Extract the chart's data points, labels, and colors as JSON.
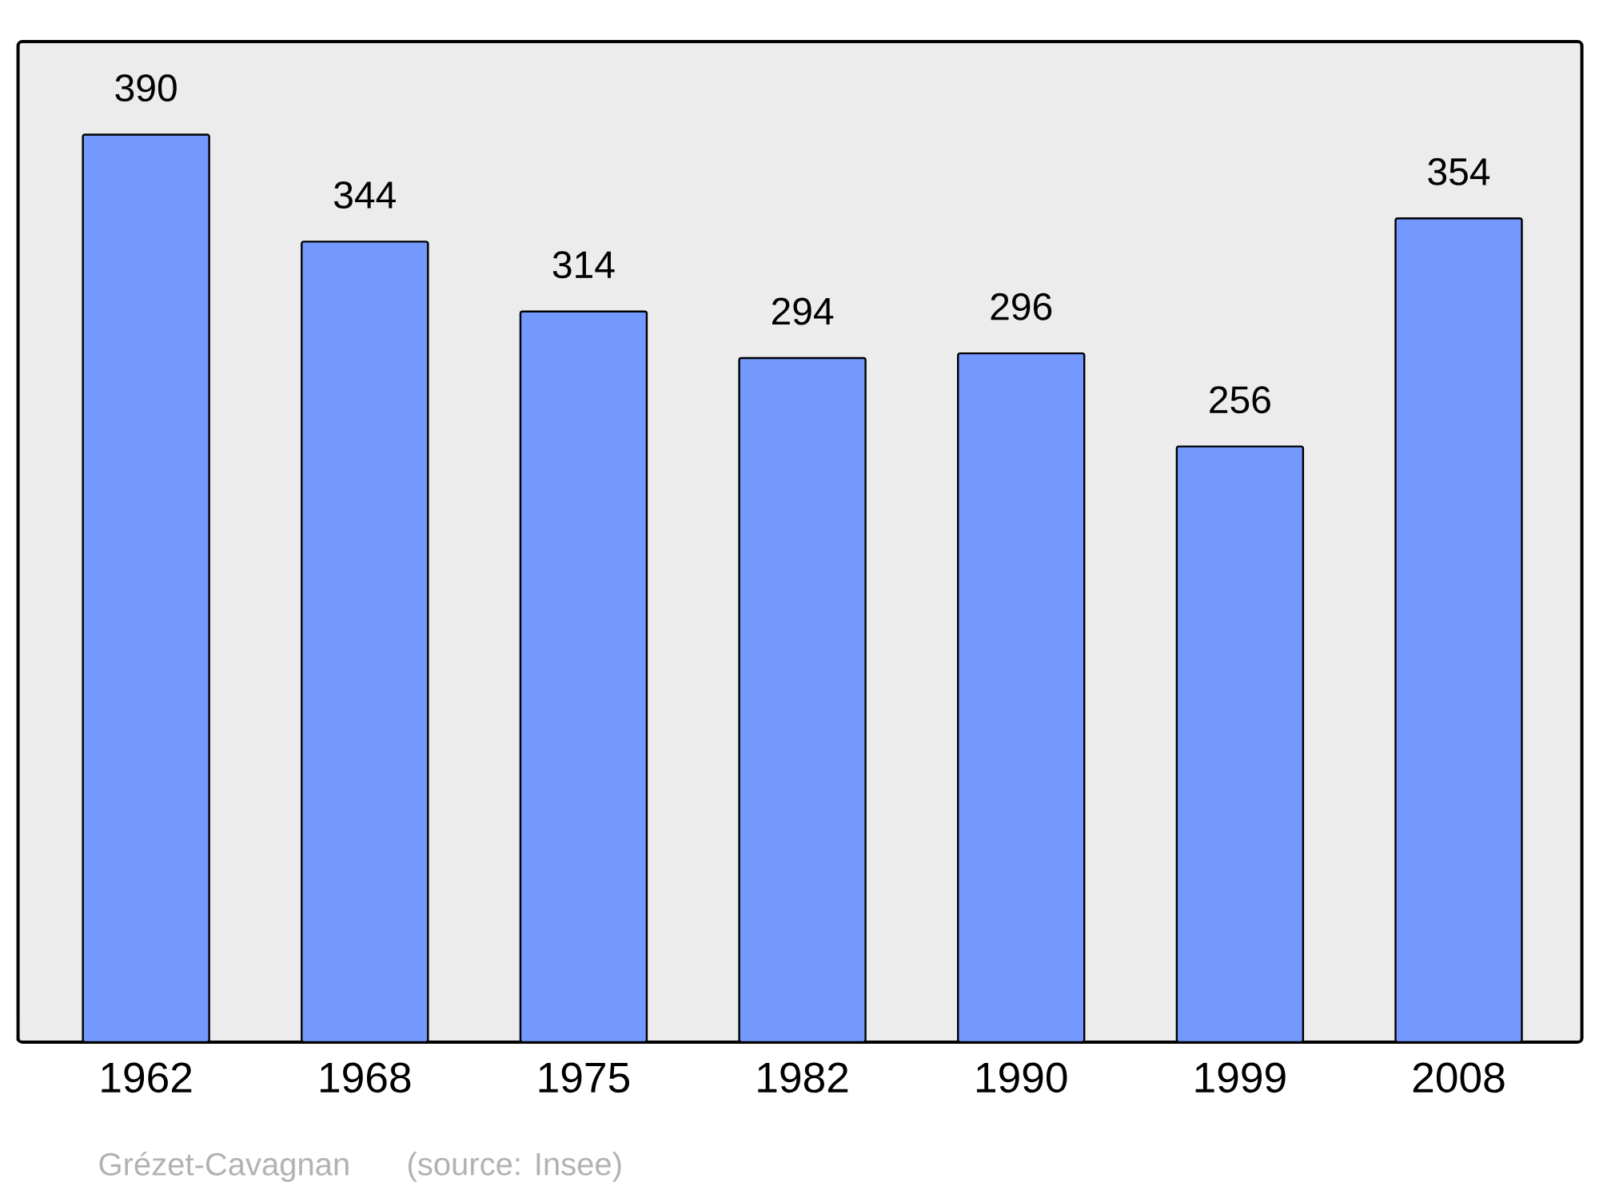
{
  "chart_data": {
    "type": "bar",
    "categories": [
      "1962",
      "1968",
      "1975",
      "1982",
      "1990",
      "1999",
      "2008"
    ],
    "values": [
      390,
      344,
      314,
      294,
      296,
      256,
      354
    ],
    "color": "#7399ff",
    "ylim": [
      0,
      430
    ],
    "data_labels": true,
    "annotations": [
      "Grézet-Cavagnan",
      "(source: Insee)"
    ]
  }
}
